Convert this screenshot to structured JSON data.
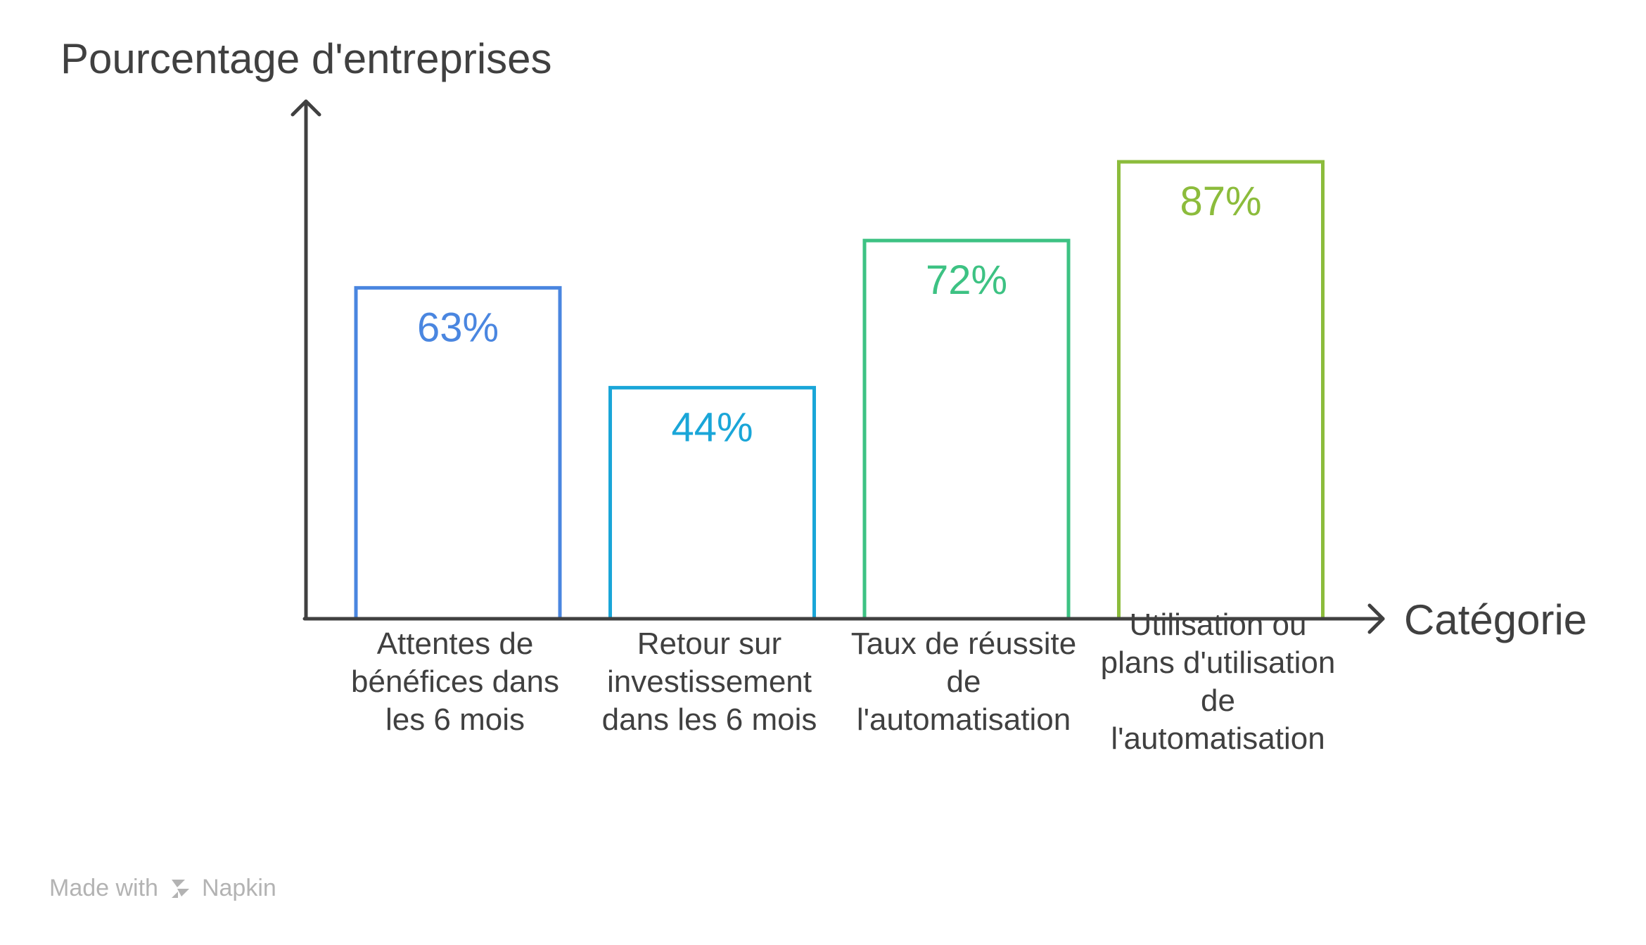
{
  "chart_data": {
    "type": "bar",
    "ylabel": "Pourcentage d'entreprises",
    "xlabel": "Catégorie",
    "ylim": [
      0,
      100
    ],
    "grid": false,
    "categories": [
      [
        "Attentes de",
        "bénéfices dans",
        "les 6 mois"
      ],
      [
        "Retour sur",
        "investissement",
        "dans les 6 mois"
      ],
      [
        "Taux de réussite",
        "de",
        "l'automatisation"
      ],
      [
        "Utilisation ou",
        "plans d'utilisation",
        "de",
        "l'automatisation"
      ]
    ],
    "values": [
      63,
      44,
      72,
      87
    ],
    "value_labels": [
      "63%",
      "44%",
      "72%",
      "87%"
    ],
    "colors": [
      "#4a86e0",
      "#1aa6d8",
      "#3dc283",
      "#8cbc3c"
    ]
  },
  "watermark": {
    "prefix": "Made with",
    "brand": "Napkin",
    "icon": "napkin-logo-icon"
  }
}
